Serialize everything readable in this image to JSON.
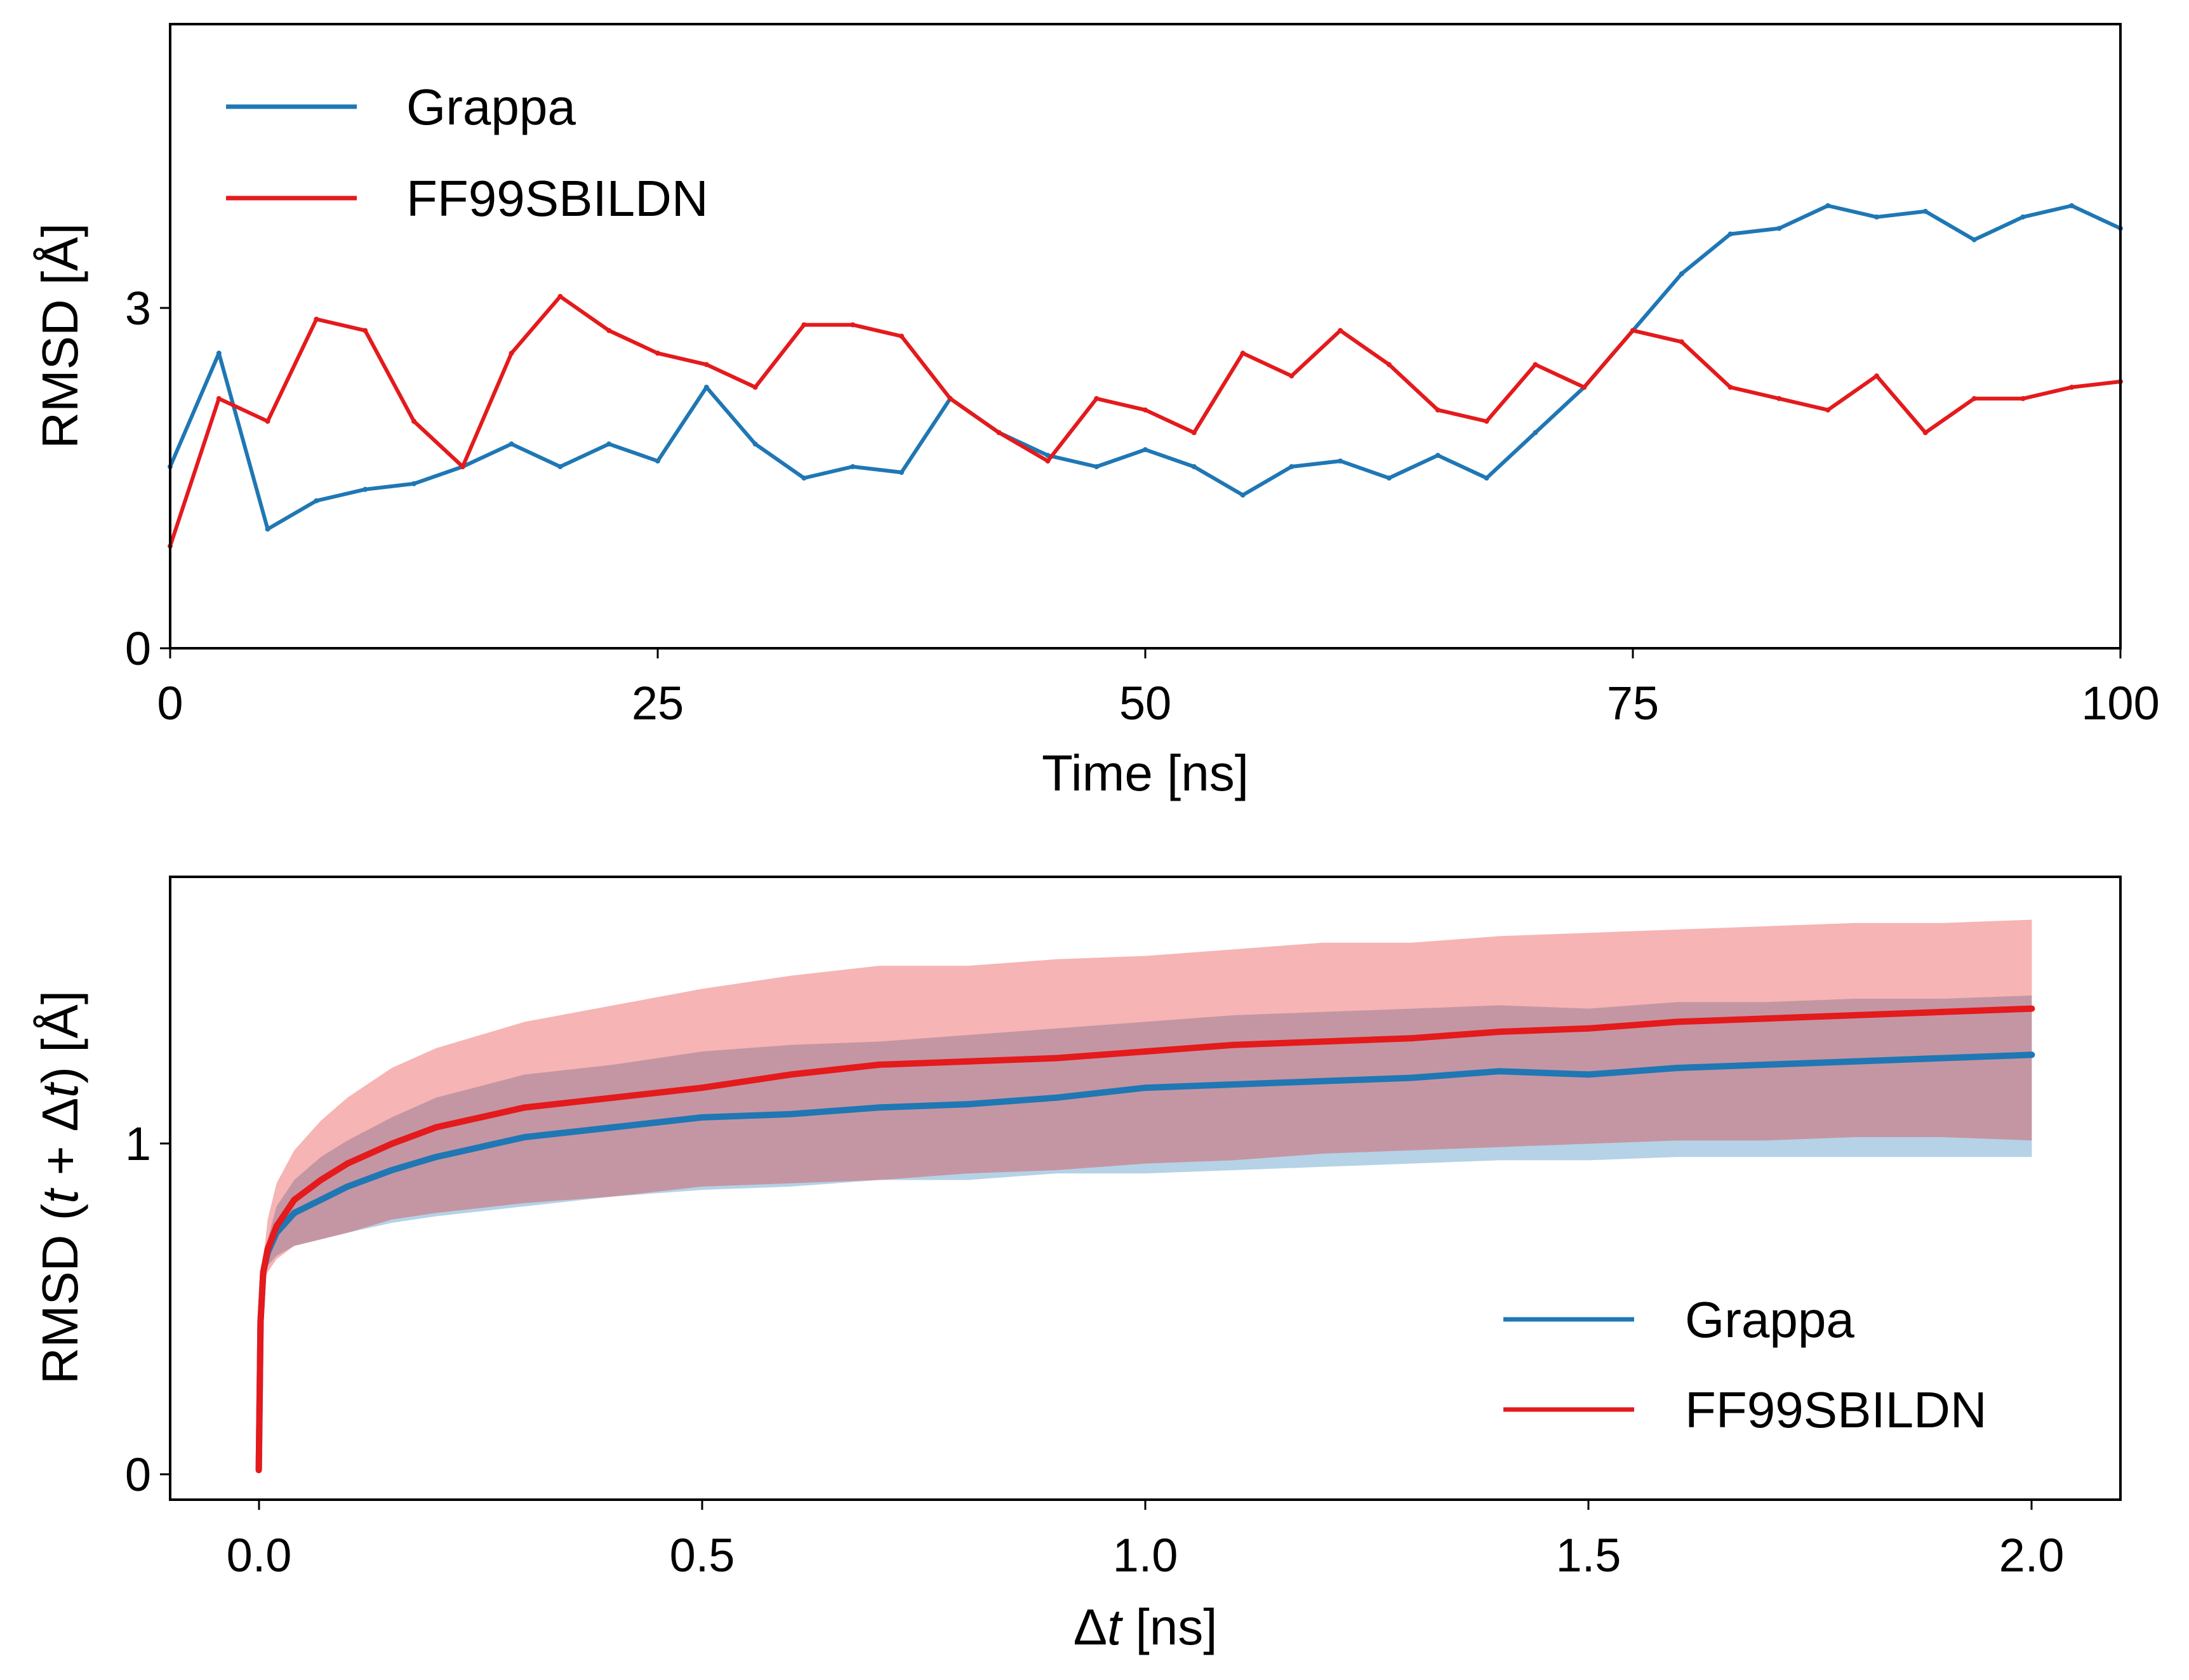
{
  "colors": {
    "grappa": "#1f77b4",
    "ff99": "#e41a1c"
  },
  "chart_data": [
    {
      "type": "line",
      "xlabel": "Time [ns]",
      "ylabel": "RMSD [Å]",
      "xlim": [
        0,
        100
      ],
      "ylim": [
        0,
        5.5
      ],
      "xticks": [
        "0",
        "25",
        "50",
        "75",
        "100"
      ],
      "yticks": [
        "0",
        "3"
      ],
      "legend_position": "top-left",
      "grid": false,
      "x": [
        0,
        2.5,
        5,
        7.5,
        10,
        12.5,
        15,
        17.5,
        20,
        22.5,
        25,
        27.5,
        30,
        32.5,
        35,
        37.5,
        40,
        42.5,
        45,
        47.5,
        50,
        52.5,
        55,
        57.5,
        60,
        62.5,
        65,
        67.5,
        70,
        72.5,
        75,
        77.5,
        80,
        82.5,
        85,
        87.5,
        90,
        92.5,
        95,
        97.5,
        100
      ],
      "series": [
        {
          "name": "Grappa",
          "values": [
            1.6,
            2.6,
            1.05,
            1.3,
            1.4,
            1.45,
            1.6,
            1.8,
            1.6,
            1.8,
            1.65,
            2.3,
            1.8,
            1.5,
            1.6,
            1.55,
            2.2,
            1.9,
            1.7,
            1.6,
            1.75,
            1.6,
            1.35,
            1.6,
            1.65,
            1.5,
            1.7,
            1.5,
            1.9,
            2.3,
            2.8,
            3.3,
            3.65,
            3.7,
            3.9,
            3.8,
            3.85,
            3.6,
            3.8,
            3.9,
            3.7
          ]
        },
        {
          "name": "FF99SBILDN",
          "values": [
            0.9,
            2.2,
            2.0,
            2.9,
            2.8,
            2.0,
            1.6,
            2.6,
            3.1,
            2.8,
            2.6,
            2.5,
            2.3,
            2.85,
            2.85,
            2.75,
            2.2,
            1.9,
            1.65,
            2.2,
            2.1,
            1.9,
            2.6,
            2.4,
            2.8,
            2.5,
            2.1,
            2.0,
            2.5,
            2.3,
            2.8,
            2.7,
            2.3,
            2.2,
            2.1,
            2.4,
            1.9,
            2.2,
            2.2,
            2.3,
            2.35
          ]
        }
      ]
    },
    {
      "type": "line",
      "xlabel": "Δt [ns]",
      "ylabel": "RMSD (t + Δt) [Å]",
      "xlim": [
        -0.1,
        2.1
      ],
      "ylim": [
        -0.09,
        1.8
      ],
      "xticks": [
        "0.0",
        "0.5",
        "1.0",
        "1.5",
        "2.0"
      ],
      "yticks": [
        "0",
        "1"
      ],
      "legend_position": "bottom-right",
      "grid": false,
      "x": [
        0,
        0.002,
        0.005,
        0.01,
        0.02,
        0.04,
        0.07,
        0.1,
        0.15,
        0.2,
        0.3,
        0.4,
        0.5,
        0.6,
        0.7,
        0.8,
        0.9,
        1.0,
        1.1,
        1.2,
        1.3,
        1.4,
        1.5,
        1.6,
        1.7,
        1.8,
        1.9,
        2.0
      ],
      "series": [
        {
          "name": "Grappa",
          "values": [
            0,
            0.45,
            0.6,
            0.66,
            0.72,
            0.78,
            0.82,
            0.86,
            0.91,
            0.95,
            1.01,
            1.04,
            1.07,
            1.08,
            1.1,
            1.11,
            1.13,
            1.16,
            1.17,
            1.18,
            1.19,
            1.21,
            1.2,
            1.22,
            1.23,
            1.24,
            1.25,
            1.26
          ],
          "lower": [
            0,
            0.45,
            0.58,
            0.62,
            0.65,
            0.68,
            0.7,
            0.72,
            0.75,
            0.77,
            0.8,
            0.83,
            0.85,
            0.86,
            0.88,
            0.88,
            0.9,
            0.9,
            0.91,
            0.92,
            0.93,
            0.94,
            0.94,
            0.95,
            0.95,
            0.95,
            0.95,
            0.95
          ],
          "upper": [
            0,
            0.45,
            0.62,
            0.7,
            0.8,
            0.88,
            0.95,
            1.0,
            1.07,
            1.13,
            1.2,
            1.23,
            1.27,
            1.29,
            1.3,
            1.32,
            1.34,
            1.36,
            1.38,
            1.39,
            1.4,
            1.41,
            1.4,
            1.42,
            1.42,
            1.43,
            1.43,
            1.44
          ]
        },
        {
          "name": "FF99SBILDN",
          "values": [
            0,
            0.45,
            0.6,
            0.67,
            0.74,
            0.82,
            0.88,
            0.93,
            0.99,
            1.04,
            1.1,
            1.13,
            1.16,
            1.2,
            1.23,
            1.24,
            1.25,
            1.27,
            1.29,
            1.3,
            1.31,
            1.33,
            1.34,
            1.36,
            1.37,
            1.38,
            1.39,
            1.4
          ],
          "lower": [
            0,
            0.45,
            0.56,
            0.6,
            0.64,
            0.68,
            0.7,
            0.72,
            0.76,
            0.78,
            0.81,
            0.83,
            0.86,
            0.87,
            0.88,
            0.9,
            0.91,
            0.93,
            0.94,
            0.96,
            0.97,
            0.98,
            0.99,
            1.0,
            1.0,
            1.01,
            1.01,
            1.0
          ],
          "upper": [
            0,
            0.45,
            0.64,
            0.76,
            0.87,
            0.97,
            1.06,
            1.13,
            1.22,
            1.28,
            1.36,
            1.41,
            1.46,
            1.5,
            1.53,
            1.53,
            1.55,
            1.56,
            1.58,
            1.6,
            1.6,
            1.62,
            1.63,
            1.64,
            1.65,
            1.66,
            1.66,
            1.67
          ]
        }
      ]
    }
  ]
}
